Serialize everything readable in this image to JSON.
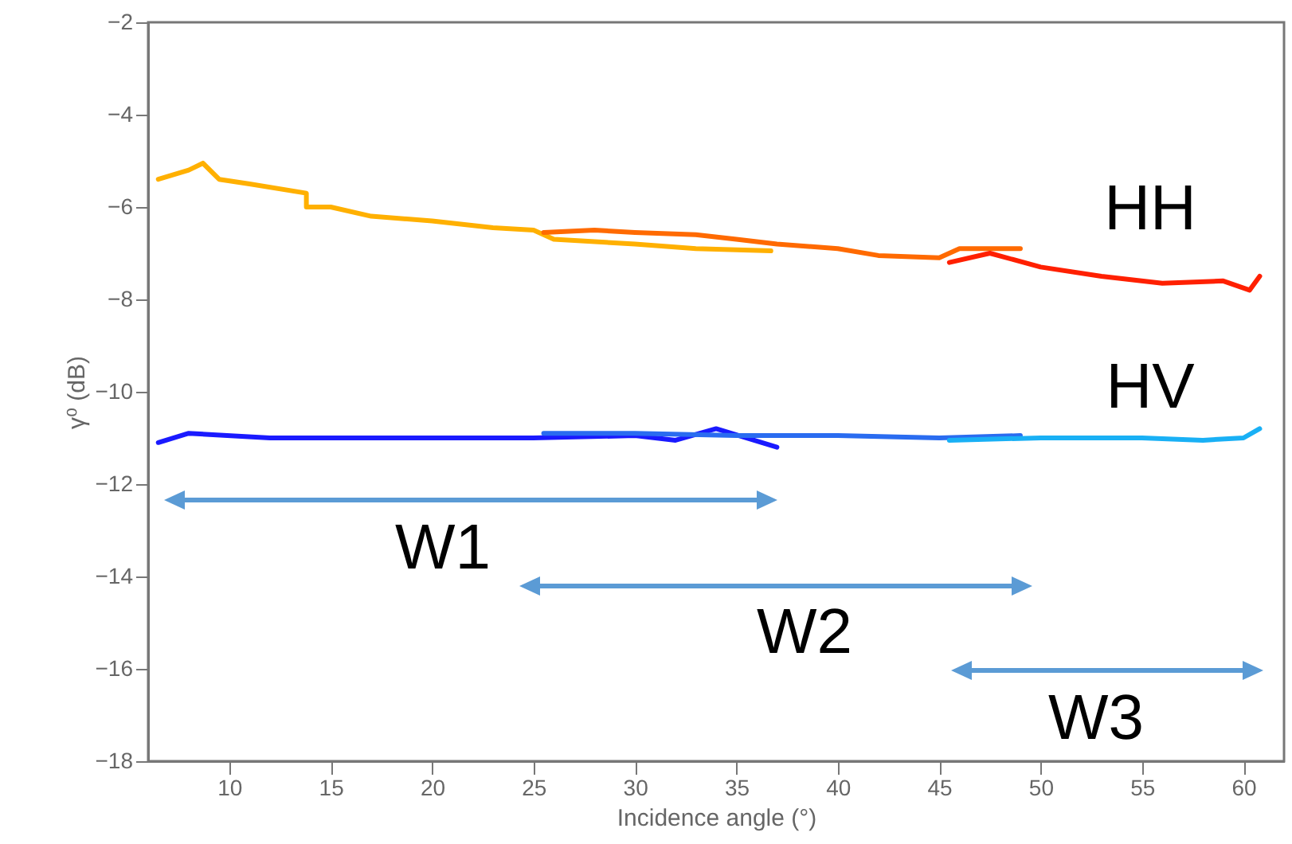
{
  "chart_data": {
    "type": "line",
    "xlabel": "Incidence angle (°)",
    "ylabel": "γ⁰ (dB)",
    "xlim": [
      6,
      62
    ],
    "xticks": [
      10,
      15,
      20,
      25,
      30,
      35,
      40,
      45,
      50,
      55,
      60
    ],
    "ylim": [
      -18,
      -2
    ],
    "yticks": [
      -18,
      -16,
      -14,
      -12,
      -10,
      -8,
      -6,
      -4,
      -2
    ],
    "grid": false,
    "line_style": "solid",
    "marker": "none",
    "series": [
      {
        "color": "#ffb000",
        "x": [
          6.5,
          8,
          8.7,
          9.5,
          11,
          13.8,
          13.8,
          15,
          17,
          20,
          23,
          25,
          26,
          30,
          33,
          36.7
        ],
        "values": [
          -5.4,
          -5.2,
          -5.05,
          -5.4,
          -5.5,
          -5.7,
          -6.0,
          -6.0,
          -6.2,
          -6.3,
          -6.45,
          -6.5,
          -6.7,
          -6.8,
          -6.9,
          -6.95
        ]
      },
      {
        "color": "#ff6a00",
        "x": [
          25.5,
          28,
          30,
          33,
          35,
          37,
          40,
          42,
          45,
          46,
          49
        ],
        "values": [
          -6.55,
          -6.5,
          -6.55,
          -6.6,
          -6.7,
          -6.8,
          -6.9,
          -7.05,
          -7.1,
          -6.9,
          -6.9
        ]
      },
      {
        "color": "#ff2000",
        "x": [
          45.5,
          47.5,
          50,
          53,
          56,
          59,
          60.3,
          60.8
        ],
        "values": [
          -7.2,
          -7.0,
          -7.3,
          -7.5,
          -7.65,
          -7.6,
          -7.8,
          -7.5
        ]
      },
      {
        "color": "#1a1aff",
        "x": [
          6.5,
          8,
          12,
          16,
          20,
          25,
          30,
          32,
          34,
          37
        ],
        "values": [
          -11.1,
          -10.9,
          -11.0,
          -11.0,
          -11.0,
          -11.0,
          -10.95,
          -11.05,
          -10.8,
          -11.2
        ]
      },
      {
        "color": "#2a6cf0",
        "x": [
          25.5,
          30,
          35,
          40,
          45,
          49
        ],
        "values": [
          -10.9,
          -10.9,
          -10.95,
          -10.95,
          -11.0,
          -10.95
        ]
      },
      {
        "color": "#19b0f5",
        "x": [
          45.5,
          50,
          55,
          58,
          60,
          60.8
        ],
        "values": [
          -11.05,
          -11.0,
          -11.0,
          -11.05,
          -11.0,
          -10.8
        ]
      }
    ],
    "annotations": [
      "HH",
      "HV",
      "W1",
      "W2",
      "W3"
    ]
  }
}
